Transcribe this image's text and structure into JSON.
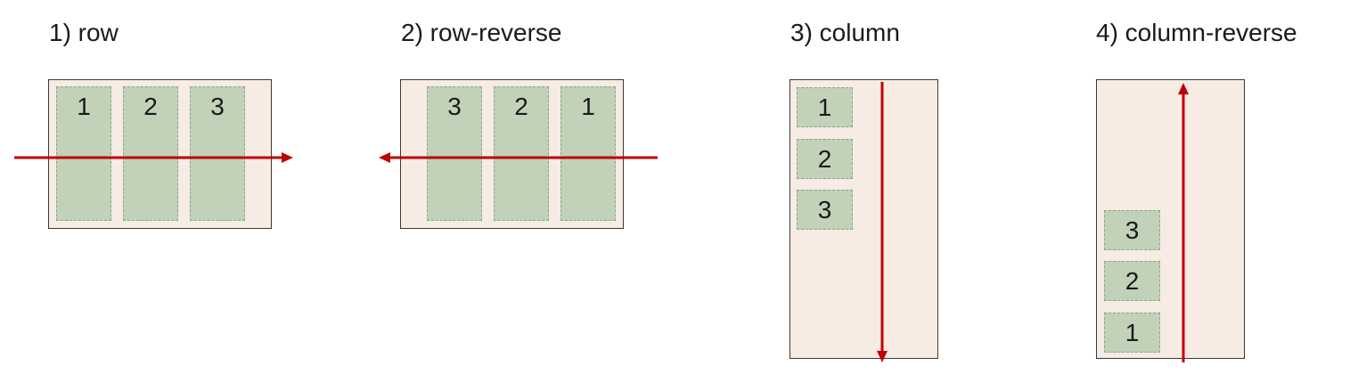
{
  "panels": [
    {
      "title": "1) row",
      "items": [
        "1",
        "2",
        "3"
      ]
    },
    {
      "title": "2) row-reverse",
      "items": [
        "3",
        "2",
        "1"
      ]
    },
    {
      "title": "3) column",
      "items": [
        "1",
        "2",
        "3"
      ]
    },
    {
      "title": "4) column-reverse",
      "items": [
        "3",
        "2",
        "1"
      ]
    }
  ],
  "colors": {
    "container_fill": "#f6ece4",
    "item_fill": "#c1d2b9",
    "arrow": "#c00000"
  }
}
